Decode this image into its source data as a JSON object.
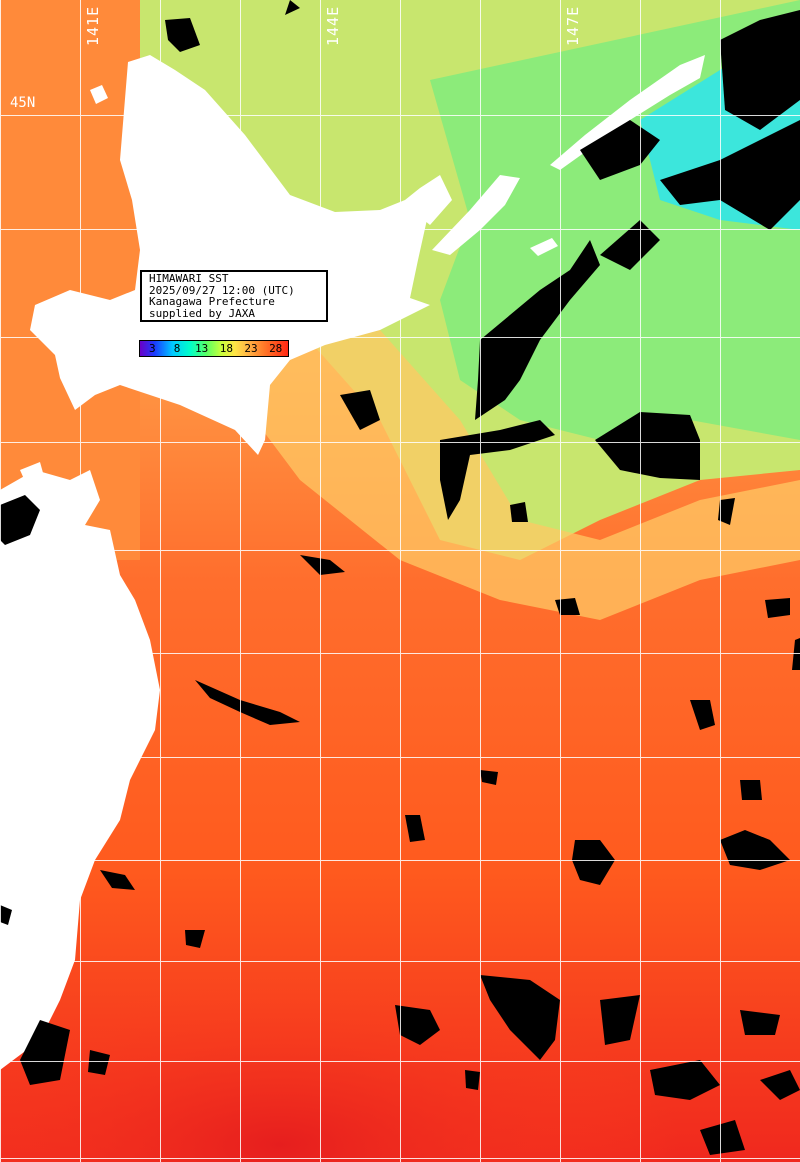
{
  "map": {
    "lon_labels": [
      "141E",
      "144E",
      "147E"
    ],
    "lat_labels": [
      "45N"
    ],
    "info": {
      "line1": "HIMAWARI SST",
      "line2": "2025/09/27 12:00 (UTC)",
      "line3": "Kanagawa Prefecture",
      "line4": "supplied by JAXA"
    },
    "colorbar_ticks": [
      "3",
      "8",
      "13",
      "18",
      "23",
      "28"
    ],
    "colors": {
      "land": "#ffffff",
      "cloud": "#000000",
      "grid": "#ffffff",
      "sst_warm": "#ff5a1e",
      "sst_hot": "#f0281e",
      "sst_mild": "#ffb450",
      "sst_cool": "#a0f064",
      "sst_cold": "#40e6c8"
    }
  }
}
